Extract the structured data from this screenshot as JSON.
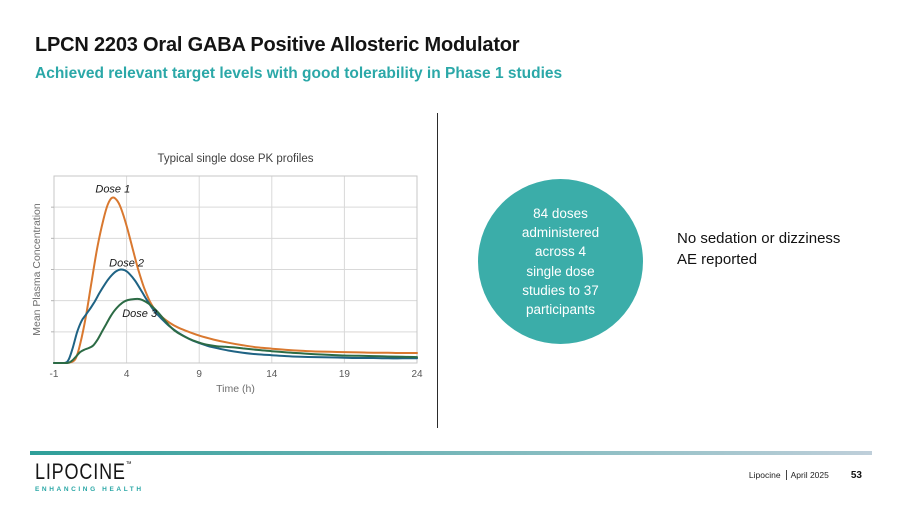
{
  "header": {
    "title": "LPCN 2203 Oral GABA Positive Allosteric Modulator",
    "subtitle": "Achieved relevant target levels with good tolerability in Phase 1 studies",
    "subtitle_color": "#2BA8A8"
  },
  "chart_data": {
    "type": "line",
    "title": "Typical single dose PK profiles",
    "xlabel": "Time (h)",
    "ylabel": "Mean Plasma Concentration",
    "xlim": [
      -1,
      24
    ],
    "ylim": [
      0,
      6
    ],
    "x_ticks": [
      -1,
      4,
      9,
      14,
      19,
      24
    ],
    "y_tick_labels_shown": false,
    "grid": true,
    "legend_position": "inline-labels",
    "series": [
      {
        "name": "Dose 1",
        "color": "#D9782F",
        "label_at": [
          3.05,
          5.6
        ],
        "points": [
          [
            -1,
            0
          ],
          [
            -0.2,
            0
          ],
          [
            0.2,
            0.03
          ],
          [
            0.5,
            0.15
          ],
          [
            0.8,
            0.6
          ],
          [
            1.2,
            1.5
          ],
          [
            1.6,
            2.65
          ],
          [
            2.0,
            3.75
          ],
          [
            2.4,
            4.6
          ],
          [
            2.7,
            5.08
          ],
          [
            3.0,
            5.3
          ],
          [
            3.3,
            5.24
          ],
          [
            3.6,
            4.98
          ],
          [
            4.0,
            4.4
          ],
          [
            4.4,
            3.7
          ],
          [
            4.8,
            3.0
          ],
          [
            5.2,
            2.42
          ],
          [
            5.6,
            1.98
          ],
          [
            6.0,
            1.68
          ],
          [
            6.5,
            1.45
          ],
          [
            7.0,
            1.28
          ],
          [
            7.5,
            1.15
          ],
          [
            8.0,
            1.05
          ],
          [
            9.0,
            0.88
          ],
          [
            10,
            0.75
          ],
          [
            11,
            0.65
          ],
          [
            12,
            0.57
          ],
          [
            13,
            0.5
          ],
          [
            14,
            0.46
          ],
          [
            15,
            0.42
          ],
          [
            16,
            0.39
          ],
          [
            17,
            0.37
          ],
          [
            18,
            0.36
          ],
          [
            19,
            0.35
          ],
          [
            20,
            0.34
          ],
          [
            21,
            0.33
          ],
          [
            22,
            0.33
          ],
          [
            23,
            0.32
          ],
          [
            24,
            0.32
          ]
        ]
      },
      {
        "name": "Dose 2",
        "color": "#1F6384",
        "label_at": [
          4.0,
          3.22
        ],
        "points": [
          [
            -1,
            0
          ],
          [
            -0.3,
            0
          ],
          [
            0,
            0.1
          ],
          [
            0.3,
            0.5
          ],
          [
            0.6,
            1.0
          ],
          [
            0.9,
            1.35
          ],
          [
            1.2,
            1.55
          ],
          [
            1.5,
            1.75
          ],
          [
            1.8,
            1.97
          ],
          [
            2.1,
            2.22
          ],
          [
            2.4,
            2.45
          ],
          [
            2.7,
            2.66
          ],
          [
            3.0,
            2.83
          ],
          [
            3.3,
            2.95
          ],
          [
            3.6,
            3.0
          ],
          [
            3.9,
            2.97
          ],
          [
            4.2,
            2.86
          ],
          [
            4.6,
            2.63
          ],
          [
            5.0,
            2.33
          ],
          [
            5.4,
            2.02
          ],
          [
            5.8,
            1.74
          ],
          [
            6.2,
            1.52
          ],
          [
            6.6,
            1.33
          ],
          [
            7.0,
            1.16
          ],
          [
            7.5,
            0.99
          ],
          [
            8.0,
            0.85
          ],
          [
            8.5,
            0.73
          ],
          [
            9.0,
            0.64
          ],
          [
            9.5,
            0.56
          ],
          [
            10,
            0.5
          ],
          [
            11,
            0.4
          ],
          [
            12,
            0.33
          ],
          [
            13,
            0.28
          ],
          [
            14,
            0.25
          ],
          [
            15,
            0.22
          ],
          [
            16,
            0.2
          ],
          [
            17,
            0.19
          ],
          [
            18,
            0.18
          ],
          [
            19,
            0.17
          ],
          [
            20,
            0.16
          ],
          [
            21,
            0.16
          ],
          [
            22,
            0.15
          ],
          [
            23,
            0.15
          ],
          [
            24,
            0.15
          ]
        ]
      },
      {
        "name": "Dose 3",
        "color": "#2C6B45",
        "label_at": [
          4.9,
          1.6
        ],
        "points": [
          [
            -1,
            0
          ],
          [
            -0.1,
            0
          ],
          [
            0.2,
            0.06
          ],
          [
            0.5,
            0.2
          ],
          [
            0.8,
            0.35
          ],
          [
            1.1,
            0.43
          ],
          [
            1.4,
            0.48
          ],
          [
            1.7,
            0.56
          ],
          [
            2.0,
            0.75
          ],
          [
            2.3,
            1.0
          ],
          [
            2.6,
            1.25
          ],
          [
            2.9,
            1.5
          ],
          [
            3.2,
            1.7
          ],
          [
            3.5,
            1.85
          ],
          [
            3.8,
            1.96
          ],
          [
            4.1,
            2.02
          ],
          [
            4.5,
            2.05
          ],
          [
            4.9,
            2.05
          ],
          [
            5.3,
            1.97
          ],
          [
            5.7,
            1.84
          ],
          [
            6.1,
            1.66
          ],
          [
            6.5,
            1.44
          ],
          [
            6.9,
            1.22
          ],
          [
            7.3,
            1.04
          ],
          [
            7.7,
            0.92
          ],
          [
            8.1,
            0.82
          ],
          [
            8.6,
            0.72
          ],
          [
            9.1,
            0.64
          ],
          [
            9.6,
            0.58
          ],
          [
            10.2,
            0.54
          ],
          [
            10.8,
            0.52
          ],
          [
            11.4,
            0.5
          ],
          [
            12,
            0.47
          ],
          [
            13,
            0.42
          ],
          [
            14,
            0.38
          ],
          [
            15,
            0.34
          ],
          [
            16,
            0.31
          ],
          [
            17,
            0.28
          ],
          [
            18,
            0.26
          ],
          [
            19,
            0.24
          ],
          [
            20,
            0.23
          ],
          [
            21,
            0.22
          ],
          [
            22,
            0.21
          ],
          [
            23,
            0.2
          ],
          [
            24,
            0.19
          ]
        ]
      }
    ]
  },
  "highlight_circle": {
    "text": "84 doses\nadministered\nacross 4\nsingle dose\nstudies to 37\nparticipants",
    "bg_color": "#3BADA9",
    "text_color": "#FFFFFF"
  },
  "note": {
    "text": "No sedation or dizziness\nAE reported"
  },
  "footer": {
    "rule_gradient": [
      "#2E9F99",
      "#BFCFDA"
    ],
    "logo_text": "LIPOCINE",
    "logo_mark": "™",
    "logo_tagline": "ENHANCING HEALTH",
    "logo_tagline_color": "#2AA7A6",
    "company": "Lipocine",
    "date": "April 2025",
    "page_number": "53"
  }
}
